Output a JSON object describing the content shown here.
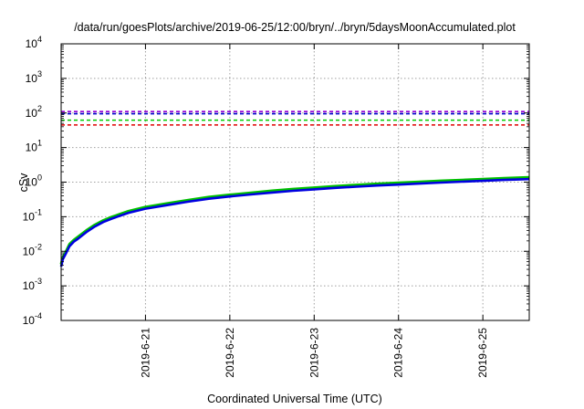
{
  "chart_data": {
    "type": "line",
    "title": "/data/run/goesPlots/archive/2019-06-25/12:00/bryn/../bryn/5daysMoonAccumulated.plot",
    "xlabel": "Coordinated Universal Time (UTC)",
    "ylabel": "cSv",
    "yscale": "log",
    "grid": true,
    "x_range_days": [
      0,
      5.55
    ],
    "ylim_exponents": [
      -4,
      4
    ],
    "y_ticks": [
      {
        "base": "10",
        "exp": "-4"
      },
      {
        "base": "10",
        "exp": "-3"
      },
      {
        "base": "10",
        "exp": "-2"
      },
      {
        "base": "10",
        "exp": "-1"
      },
      {
        "base": "10",
        "exp": "0"
      },
      {
        "base": "10",
        "exp": "1"
      },
      {
        "base": "10",
        "exp": "2"
      },
      {
        "base": "10",
        "exp": "3"
      },
      {
        "base": "10",
        "exp": "4"
      }
    ],
    "x_ticks": [
      {
        "label": "2019-6-21",
        "day": 1
      },
      {
        "label": "2019-6-22",
        "day": 2
      },
      {
        "label": "2019-6-23",
        "day": 3
      },
      {
        "label": "2019-6-24",
        "day": 4
      },
      {
        "label": "2019-6-25",
        "day": 5
      }
    ],
    "reference_lines": [
      {
        "value": 110,
        "color": "#9400d3"
      },
      {
        "value": 95,
        "color": "#0000cc"
      },
      {
        "value": 62,
        "color": "#00cc00"
      },
      {
        "value": 45,
        "color": "#e00000"
      }
    ],
    "series": [
      {
        "color": "#00c000",
        "x": [
          0.0,
          0.02,
          0.05,
          0.1,
          0.15,
          0.2,
          0.3,
          0.4,
          0.5,
          0.6,
          0.8,
          1.0,
          1.25,
          1.5,
          1.75,
          2.0,
          2.25,
          2.5,
          2.75,
          3.0,
          3.25,
          3.5,
          3.75,
          4.0,
          4.25,
          4.5,
          4.75,
          5.0,
          5.25,
          5.55
        ],
        "y": [
          0.0042,
          0.0065,
          0.009,
          0.016,
          0.021,
          0.026,
          0.04,
          0.058,
          0.078,
          0.098,
          0.145,
          0.19,
          0.24,
          0.3,
          0.37,
          0.43,
          0.49,
          0.56,
          0.63,
          0.69,
          0.76,
          0.83,
          0.89,
          0.95,
          1.02,
          1.09,
          1.15,
          1.22,
          1.3,
          1.38
        ]
      },
      {
        "color": "#0000e0",
        "x": [
          0.0,
          0.02,
          0.05,
          0.1,
          0.15,
          0.2,
          0.3,
          0.4,
          0.5,
          0.6,
          0.8,
          1.0,
          1.25,
          1.5,
          1.75,
          2.0,
          2.25,
          2.5,
          2.75,
          3.0,
          3.25,
          3.5,
          3.75,
          4.0,
          4.25,
          4.5,
          4.75,
          5.0,
          5.25,
          5.55
        ],
        "y": [
          0.0036,
          0.0058,
          0.008,
          0.014,
          0.019,
          0.023,
          0.036,
          0.052,
          0.07,
          0.088,
          0.13,
          0.17,
          0.215,
          0.27,
          0.33,
          0.385,
          0.44,
          0.5,
          0.56,
          0.62,
          0.68,
          0.74,
          0.8,
          0.85,
          0.91,
          0.97,
          1.03,
          1.09,
          1.16,
          1.22
        ]
      }
    ]
  }
}
